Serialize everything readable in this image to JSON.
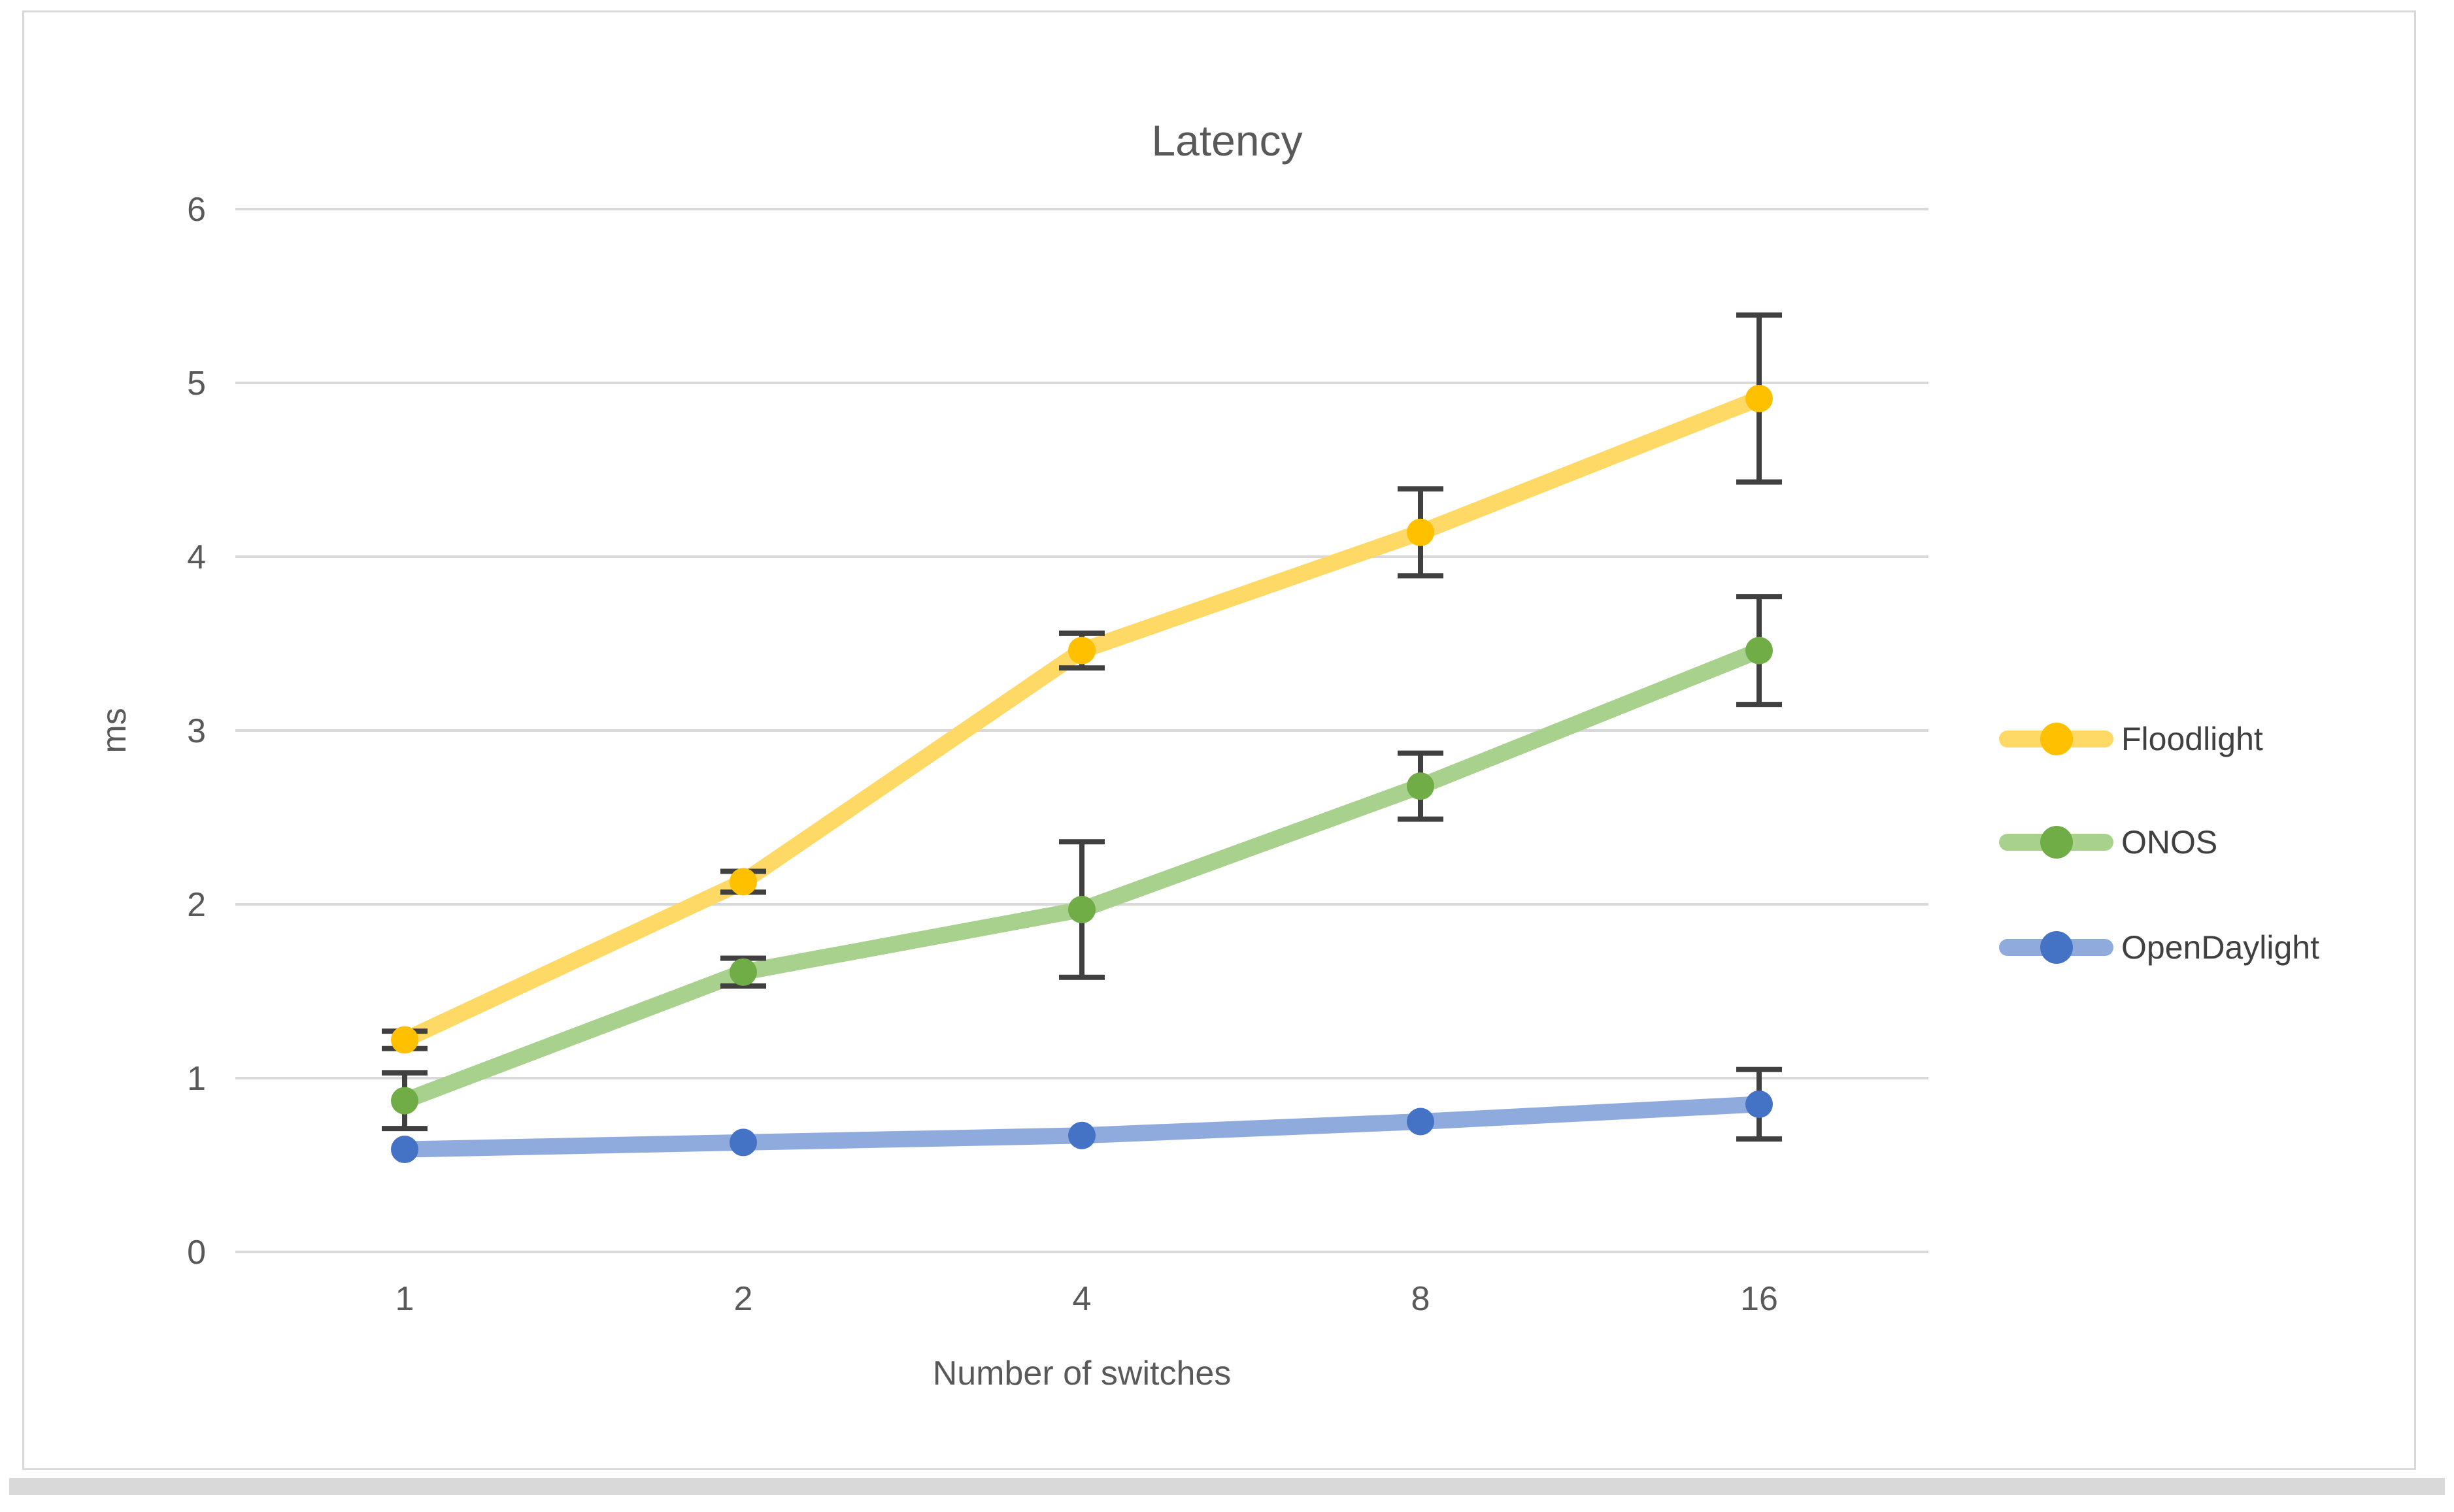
{
  "title": "Latency",
  "y_axis": {
    "title": "ms",
    "ticks": [
      0,
      1,
      2,
      3,
      4,
      5,
      6
    ],
    "min": 0,
    "max": 6
  },
  "x_axis": {
    "title": "Number of switches",
    "categories": [
      "1",
      "2",
      "4",
      "8",
      "16"
    ]
  },
  "colors": {
    "gridline": "#D9D9D9",
    "error_bar": "#404040",
    "text": "#595959"
  },
  "chart_data": {
    "type": "line",
    "title": "Latency",
    "xlabel": "Number of switches",
    "ylabel": "ms",
    "categories": [
      1,
      2,
      4,
      8,
      16
    ],
    "ylim": [
      0,
      6
    ],
    "grid": true,
    "legend_position": "right",
    "error_bars": true,
    "series": [
      {
        "name": "Floodlight",
        "line_color": "#FFD966",
        "marker_color": "#FFC000",
        "values": [
          1.22,
          2.13,
          3.46,
          4.14,
          4.91
        ],
        "errors": [
          0.05,
          0.06,
          0.1,
          0.25,
          0.48
        ]
      },
      {
        "name": "ONOS",
        "line_color": "#A9D18E",
        "marker_color": "#70AD47",
        "values": [
          0.87,
          1.61,
          1.97,
          2.68,
          3.46
        ],
        "errors": [
          0.16,
          0.08,
          0.39,
          0.19,
          0.31
        ]
      },
      {
        "name": "OpenDaylight",
        "line_color": "#8FAADC",
        "marker_color": "#4472C4",
        "values": [
          0.59,
          0.63,
          0.67,
          0.75,
          0.85
        ],
        "errors": [
          0,
          0,
          0,
          0,
          0.2
        ]
      }
    ]
  }
}
